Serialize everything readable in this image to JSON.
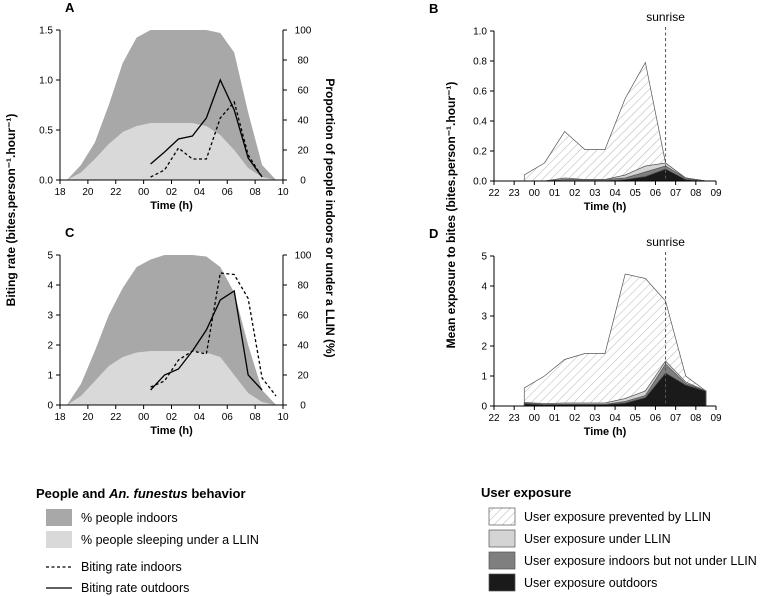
{
  "chart_data": [
    {
      "panel": "A",
      "type": "area",
      "xlabel": "Time (h)",
      "xlim": [
        18,
        10
      ],
      "x_ticks": [
        "18",
        "20",
        "22",
        "00",
        "02",
        "04",
        "06",
        "08",
        "10"
      ],
      "ylim": [
        0,
        1.5
      ],
      "y_ticks": [
        "0.0",
        "0.5",
        "1.0",
        "1.5"
      ],
      "y2lim": [
        0,
        100
      ],
      "y2_ticks": [
        "0",
        "20",
        "40",
        "60",
        "80",
        "100"
      ],
      "x": [
        "18:30",
        "19:30",
        "20:30",
        "21:30",
        "22:30",
        "23:30",
        "00:30",
        "01:30",
        "02:30",
        "03:30",
        "04:30",
        "05:30",
        "06:30",
        "07:30",
        "08:30",
        "09:30"
      ],
      "series": [
        {
          "name": "% people indoors",
          "values": [
            0,
            10,
            25,
            50,
            78,
            95,
            100,
            100,
            100,
            100,
            100,
            98,
            85,
            45,
            10,
            0
          ]
        },
        {
          "name": "% people sleeping under a LLIN",
          "values": [
            0,
            5,
            14,
            24,
            32,
            36,
            38,
            38,
            38,
            38,
            36,
            30,
            20,
            8,
            2,
            0
          ]
        },
        {
          "name": "Biting rate indoors",
          "values": [
            null,
            null,
            null,
            null,
            null,
            null,
            0.03,
            0.1,
            0.32,
            0.21,
            0.21,
            0.62,
            0.78,
            0.25,
            0.03,
            null
          ]
        },
        {
          "name": "Biting rate outdoors",
          "values": [
            null,
            null,
            null,
            null,
            null,
            null,
            0.16,
            0.28,
            0.41,
            0.44,
            0.62,
            1.0,
            0.7,
            0.22,
            0.03,
            null
          ]
        }
      ]
    },
    {
      "panel": "B",
      "type": "area",
      "xlabel": "Time (h)",
      "xlim": [
        22,
        9
      ],
      "x_ticks": [
        "22",
        "23",
        "00",
        "01",
        "02",
        "03",
        "04",
        "05",
        "06",
        "07",
        "08",
        "09"
      ],
      "ylim": [
        0,
        1.0
      ],
      "y_ticks": [
        "0.0",
        "0.2",
        "0.4",
        "0.6",
        "0.8",
        "1.0"
      ],
      "annotation": "sunrise",
      "x": [
        "23:30",
        "00:30",
        "01:30",
        "02:30",
        "03:30",
        "04:30",
        "05:30",
        "06:30",
        "07:30",
        "08:30"
      ],
      "series": [
        {
          "name": "User exposure prevented by LLIN",
          "values": [
            0.04,
            0.12,
            0.33,
            0.21,
            0.21,
            0.55,
            0.79,
            0.12,
            0.02,
            0.0
          ]
        },
        {
          "name": "User exposure under LLIN",
          "values": [
            0.0,
            0.0,
            0.02,
            0.01,
            0.01,
            0.04,
            0.1,
            0.12,
            0.02,
            0.0
          ]
        },
        {
          "name": "User exposure indoors but not under LLIN",
          "values": [
            0.0,
            0.0,
            0.01,
            0.01,
            0.01,
            0.02,
            0.06,
            0.1,
            0.02,
            0.0
          ]
        },
        {
          "name": "User exposure outdoors",
          "values": [
            0.0,
            0.0,
            0.0,
            0.0,
            0.0,
            0.01,
            0.03,
            0.08,
            0.01,
            0.0
          ]
        }
      ]
    },
    {
      "panel": "C",
      "type": "area",
      "xlabel": "Time (h)",
      "xlim": [
        18,
        10
      ],
      "x_ticks": [
        "18",
        "20",
        "22",
        "00",
        "02",
        "04",
        "06",
        "08",
        "10"
      ],
      "ylim": [
        0,
        5
      ],
      "y_ticks": [
        "0",
        "1",
        "2",
        "3",
        "4",
        "5"
      ],
      "y2lim": [
        0,
        100
      ],
      "y2_ticks": [
        "0",
        "20",
        "40",
        "60",
        "80",
        "100"
      ],
      "x": [
        "18:30",
        "19:30",
        "20:30",
        "21:30",
        "22:30",
        "23:30",
        "00:30",
        "01:30",
        "02:30",
        "03:30",
        "04:30",
        "05:30",
        "06:30",
        "07:30",
        "08:30",
        "09:30"
      ],
      "series": [
        {
          "name": "% people indoors",
          "values": [
            0,
            14,
            36,
            60,
            78,
            92,
            97,
            100,
            100,
            100,
            99,
            92,
            75,
            40,
            10,
            0
          ]
        },
        {
          "name": "% people sleeping under a LLIN",
          "values": [
            0,
            6,
            16,
            26,
            32,
            35,
            36,
            36,
            36,
            36,
            35,
            32,
            20,
            8,
            2,
            0
          ]
        },
        {
          "name": "Biting rate indoors",
          "values": [
            null,
            null,
            null,
            null,
            null,
            null,
            0.6,
            0.8,
            1.5,
            1.8,
            1.7,
            4.4,
            4.35,
            3.55,
            0.9,
            0.3
          ]
        },
        {
          "name": "Biting rate outdoors",
          "values": [
            null,
            null,
            null,
            null,
            null,
            null,
            0.5,
            1.0,
            1.2,
            1.8,
            2.5,
            3.5,
            3.8,
            1.0,
            0.5,
            null
          ]
        }
      ]
    },
    {
      "panel": "D",
      "type": "area",
      "xlabel": "Time (h)",
      "xlim": [
        22,
        9
      ],
      "x_ticks": [
        "22",
        "23",
        "00",
        "01",
        "02",
        "03",
        "04",
        "05",
        "06",
        "07",
        "08",
        "09"
      ],
      "ylim": [
        0,
        5
      ],
      "y_ticks": [
        "0",
        "1",
        "2",
        "3",
        "4",
        "5"
      ],
      "annotation": "sunrise",
      "x": [
        "23:30",
        "00:30",
        "01:30",
        "02:30",
        "03:30",
        "04:30",
        "05:30",
        "06:30",
        "07:30",
        "08:30"
      ],
      "series": [
        {
          "name": "User exposure prevented by LLIN",
          "values": [
            0.6,
            1.0,
            1.55,
            1.75,
            1.75,
            4.4,
            4.25,
            3.5,
            1.0,
            0.5
          ]
        },
        {
          "name": "User exposure under LLIN",
          "values": [
            0.12,
            0.08,
            0.1,
            0.1,
            0.1,
            0.25,
            0.5,
            1.5,
            0.8,
            0.5
          ]
        },
        {
          "name": "User exposure indoors but not under LLIN",
          "values": [
            0.1,
            0.05,
            0.06,
            0.06,
            0.06,
            0.15,
            0.35,
            1.4,
            0.75,
            0.5
          ]
        },
        {
          "name": "User exposure outdoors",
          "values": [
            0.08,
            0.04,
            0.05,
            0.05,
            0.05,
            0.1,
            0.28,
            1.1,
            0.7,
            0.5
          ]
        }
      ]
    }
  ],
  "axis_titles": {
    "left": "Biting rate (bites.person⁻¹.hour⁻¹)",
    "middle": "Proportion of people indoors or under a LLIN (%)",
    "right": "Mean exposure to bites (bites.person⁻¹.hour⁻¹)"
  },
  "legend_left": {
    "title_prefix": "People and ",
    "title_species": "An. funestus",
    "title_suffix": " behavior",
    "items": [
      "% people indoors",
      "% people sleeping under a LLIN",
      "Biting rate indoors",
      "Biting rate outdoors"
    ]
  },
  "legend_right": {
    "title": "User exposure",
    "items": [
      "User exposure prevented by LLIN",
      "User exposure under LLIN",
      "User exposure indoors but not under LLIN",
      "User exposure outdoors"
    ]
  },
  "colors": {
    "indoors": "#a8a8a8",
    "llin": "#d9d9d9",
    "under_llin": "#d4d4d4",
    "indoors_not_llin": "#7f7f7f",
    "outdoors": "#1a1a1a"
  }
}
